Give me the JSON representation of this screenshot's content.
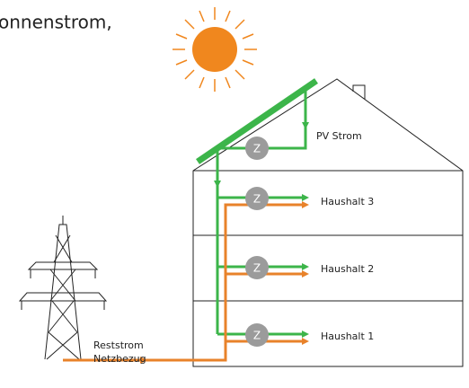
{
  "caption": "onnenstrom,",
  "pv_label": "PV Strom",
  "meter_label": "Z",
  "households": [
    "Haushalt 3",
    "Haushalt 2",
    "Haushalt 1"
  ],
  "grid_label": [
    "Reststrom",
    "Netzbezug"
  ]
}
